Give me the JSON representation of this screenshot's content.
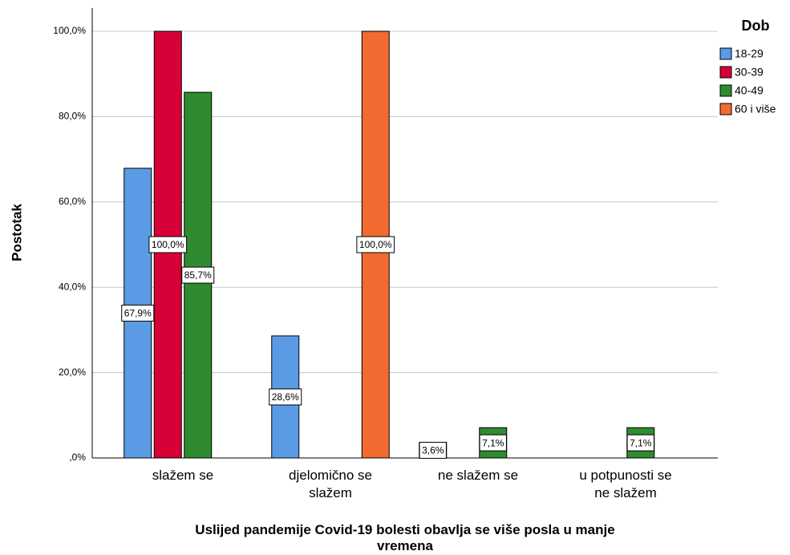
{
  "chart_data": {
    "type": "bar",
    "x_label": "Uslijed pandemije Covid-19 bolesti obavlja se više posla u manje vremena",
    "y_label": "Postotak",
    "legend_title": "Dob",
    "legend": "right",
    "grid": true,
    "categories": [
      "slažem se",
      "djelomično se slažem",
      "ne slažem se",
      "u potpunosti se ne slažem"
    ],
    "ylim": [
      0,
      100
    ],
    "yticks": [
      {
        "value": 0,
        "label": ",0%"
      },
      {
        "value": 20,
        "label": "20,0%"
      },
      {
        "value": 40,
        "label": "40,0%"
      },
      {
        "value": 60,
        "label": "60,0%"
      },
      {
        "value": 80,
        "label": "80,0%"
      },
      {
        "value": 100,
        "label": "100,0%"
      }
    ],
    "series": [
      {
        "name": "18-29",
        "color": "#5b9be6",
        "values": [
          67.9,
          28.6,
          3.6,
          null
        ],
        "value_labels": [
          "67,9%",
          "28,6%",
          "3,6%",
          null
        ]
      },
      {
        "name": "30-39",
        "color": "#d70037",
        "values": [
          100,
          null,
          null,
          null
        ],
        "value_labels": [
          "100,0%",
          null,
          null,
          null
        ]
      },
      {
        "name": "40-49",
        "color": "#2f8b2f",
        "values": [
          85.7,
          null,
          7.1,
          7.1
        ],
        "value_labels": [
          "85,7%",
          null,
          "7,1%",
          "7,1%"
        ]
      },
      {
        "name": "60 i više",
        "color": "#f26a2f",
        "values": [
          null,
          100,
          null,
          null
        ],
        "value_labels": [
          null,
          "100,0%",
          null,
          null
        ]
      }
    ]
  }
}
